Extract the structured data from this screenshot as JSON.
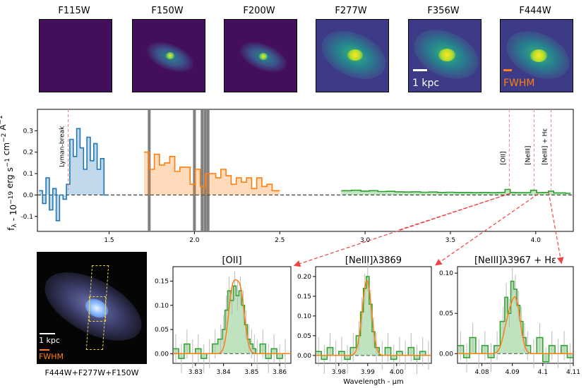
{
  "cutouts": [
    {
      "filter": "F115W",
      "level": 0.05
    },
    {
      "filter": "F150W",
      "level": 0.55
    },
    {
      "filter": "F200W",
      "level": 0.55
    },
    {
      "filter": "F277W",
      "level": 0.85
    },
    {
      "filter": "F356W",
      "level": 0.9
    },
    {
      "filter": "F444W",
      "level": 0.85
    }
  ],
  "scale_bar_label": "1 kpc",
  "fwhm_label": "FWHM",
  "rgb_panel": {
    "scale_bar_label": "1 kpc",
    "fwhm_label": "FWHM",
    "caption": "F444W+F277W+F150W"
  },
  "colors": {
    "prism_blue": "#1f77b4",
    "prism_orange": "#ff7f0e",
    "prism_green": "#2ca02c",
    "fit_orange": "#ff7f0e",
    "marker_red": "#f08080",
    "arrow_red": "#ef4444",
    "gap_gray": "#808080"
  },
  "chart_data": [
    {
      "type": "line",
      "ylabel": "f_λ - 10^-19 erg s^-1 cm^-2 Å^-1",
      "xlim": [
        1.08,
        4.22
      ],
      "ylim": [
        -0.17,
        0.4
      ],
      "xticks": [
        "1.5",
        "2.0",
        "2.5",
        "3.0",
        "3.5",
        "4.0"
      ],
      "yticks": [
        "-0.1",
        "0.0",
        "0.1",
        "0.2",
        "0.3"
      ],
      "zero_line": 0.0,
      "line_markers": [
        {
          "label": "Lyman-break",
          "x": 1.26
        },
        {
          "label": "[OII]",
          "x": 3.845
        },
        {
          "label": "[NeIII]",
          "x": 3.99
        },
        {
          "label": "[NeIII] + Hε",
          "x": 4.09
        }
      ],
      "detector_gaps": [
        1.735,
        2.0,
        2.045,
        2.063,
        2.08
      ],
      "series": [
        {
          "color": "#1f77b4",
          "x": [
            1.1,
            1.12,
            1.14,
            1.16,
            1.18,
            1.2,
            1.22,
            1.24,
            1.26,
            1.28,
            1.3,
            1.32,
            1.34,
            1.36,
            1.38,
            1.4,
            1.42,
            1.44,
            1.46,
            1.48
          ],
          "values": [
            0.02,
            -0.04,
            0.08,
            -0.07,
            0.03,
            -0.12,
            0.0,
            -0.02,
            0.05,
            0.26,
            0.18,
            0.31,
            0.22,
            0.12,
            0.27,
            0.16,
            0.24,
            0.12,
            0.17,
            0.0
          ]
        },
        {
          "color": "#ff7f0e",
          "x": [
            1.72,
            1.75,
            1.78,
            1.81,
            1.84,
            1.87,
            1.9,
            1.93,
            1.96,
            1.99,
            2.02,
            2.05,
            2.08,
            2.11,
            2.14,
            2.17,
            2.2,
            2.23,
            2.26,
            2.29,
            2.32,
            2.35,
            2.38,
            2.41,
            2.44,
            2.47,
            2.49
          ],
          "values": [
            0.2,
            0.12,
            0.19,
            0.14,
            0.15,
            0.18,
            0.11,
            0.13,
            0.13,
            0.05,
            0.12,
            0.04,
            0.1,
            0.1,
            0.08,
            0.12,
            0.09,
            0.05,
            0.08,
            0.06,
            0.08,
            0.03,
            0.08,
            0.04,
            0.05,
            0.02,
            0.02
          ]
        },
        {
          "color": "#2ca02c",
          "x": [
            2.89,
            2.95,
            3.0,
            3.05,
            3.1,
            3.15,
            3.2,
            3.25,
            3.3,
            3.35,
            3.4,
            3.45,
            3.5,
            3.55,
            3.6,
            3.65,
            3.7,
            3.75,
            3.8,
            3.84,
            3.86,
            3.9,
            3.95,
            3.99,
            4.02,
            4.06,
            4.09,
            4.12,
            4.16,
            4.19
          ],
          "values": [
            0.02,
            0.022,
            0.018,
            0.02,
            0.016,
            0.017,
            0.015,
            0.014,
            0.015,
            0.013,
            0.014,
            0.012,
            0.013,
            0.012,
            0.012,
            0.011,
            0.012,
            0.011,
            0.012,
            0.026,
            0.012,
            0.011,
            0.011,
            0.022,
            0.011,
            0.012,
            0.018,
            0.01,
            0.01,
            0.008
          ]
        }
      ]
    },
    {
      "type": "line",
      "title": "[OII]",
      "xlim": [
        3.822,
        3.864
      ],
      "ylim": [
        -0.02,
        0.18
      ],
      "xticks": [
        "3.83",
        "3.84",
        "3.85",
        "3.86"
      ],
      "yticks": [
        "0.00",
        "0.05",
        "0.10",
        "0.15"
      ],
      "series": [
        {
          "name": "data",
          "color": "#2ca02c",
          "x": [
            3.823,
            3.825,
            3.827,
            3.829,
            3.831,
            3.833,
            3.835,
            3.837,
            3.839,
            3.84,
            3.841,
            3.842,
            3.843,
            3.844,
            3.845,
            3.846,
            3.847,
            3.848,
            3.849,
            3.85,
            3.851,
            3.852,
            3.854,
            3.856,
            3.858,
            3.86,
            3.862
          ],
          "values": [
            0.01,
            -0.01,
            0.02,
            0.0,
            0.01,
            -0.01,
            0.0,
            0.02,
            0.03,
            0.05,
            0.09,
            0.13,
            0.11,
            0.14,
            0.12,
            0.13,
            0.1,
            0.06,
            0.03,
            0.02,
            0.01,
            0.0,
            0.02,
            -0.01,
            0.01,
            -0.01,
            0.0
          ]
        },
        {
          "name": "fit",
          "color": "#ff7f0e",
          "peaks": [
            {
              "x0": 3.8432,
              "amp": 0.125,
              "sigma": 0.0015
            },
            {
              "x0": 3.8461,
              "amp": 0.118,
              "sigma": 0.0015
            }
          ]
        }
      ]
    },
    {
      "type": "line",
      "title": "[NeIII]λ3869",
      "xlim": [
        3.972,
        4.012
      ],
      "ylim": [
        -0.02,
        0.225
      ],
      "xticks": [
        "3.98",
        "3.99",
        "4.00"
      ],
      "yticks": [
        "0.00",
        "0.05",
        "0.10",
        "0.15",
        "0.20"
      ],
      "xlabel": "Wavelength - μm",
      "series": [
        {
          "name": "data",
          "color": "#2ca02c",
          "x": [
            3.973,
            3.975,
            3.977,
            3.979,
            3.981,
            3.983,
            3.985,
            3.987,
            3.988,
            3.989,
            3.99,
            3.991,
            3.992,
            3.993,
            3.995,
            3.997,
            3.999,
            4.001,
            4.003,
            4.005,
            4.007,
            4.009,
            4.011
          ],
          "values": [
            0.01,
            -0.01,
            0.02,
            0.0,
            0.01,
            -0.01,
            0.02,
            0.05,
            0.11,
            0.17,
            0.2,
            0.13,
            0.06,
            0.02,
            0.0,
            0.02,
            -0.01,
            0.01,
            0.0,
            0.02,
            -0.01,
            0.01,
            0.0
          ]
        },
        {
          "name": "fit",
          "color": "#ff7f0e",
          "peaks": [
            {
              "x0": 3.9897,
              "amp": 0.19,
              "sigma": 0.0016
            }
          ]
        }
      ]
    },
    {
      "type": "line",
      "title": "[NeIII]λ3967 + Hε",
      "xlim": [
        4.072,
        4.11
      ],
      "ylim": [
        -0.012,
        0.108
      ],
      "xticks": [
        "4.08",
        "4.09",
        "4.1",
        "4.11"
      ],
      "yticks": [
        "0.00",
        "0.05",
        "0.10"
      ],
      "series": [
        {
          "name": "data",
          "color": "#2ca02c",
          "x": [
            4.073,
            4.075,
            4.077,
            4.079,
            4.081,
            4.083,
            4.085,
            4.087,
            4.088,
            4.089,
            4.09,
            4.091,
            4.092,
            4.093,
            4.094,
            4.095,
            4.097,
            4.099,
            4.101,
            4.103,
            4.105,
            4.107,
            4.109
          ],
          "values": [
            0.01,
            -0.005,
            0.02,
            0.0,
            0.01,
            -0.005,
            0.01,
            0.04,
            0.07,
            0.05,
            0.09,
            0.08,
            0.06,
            0.04,
            0.02,
            0.01,
            0.0,
            0.02,
            -0.01,
            0.01,
            0.0,
            0.01,
            -0.005
          ]
        },
        {
          "name": "fit",
          "color": "#ff7f0e",
          "peaks": [
            {
              "x0": 4.0885,
              "amp": 0.035,
              "sigma": 0.0015
            },
            {
              "x0": 4.0912,
              "amp": 0.062,
              "sigma": 0.0015
            }
          ]
        }
      ]
    }
  ]
}
